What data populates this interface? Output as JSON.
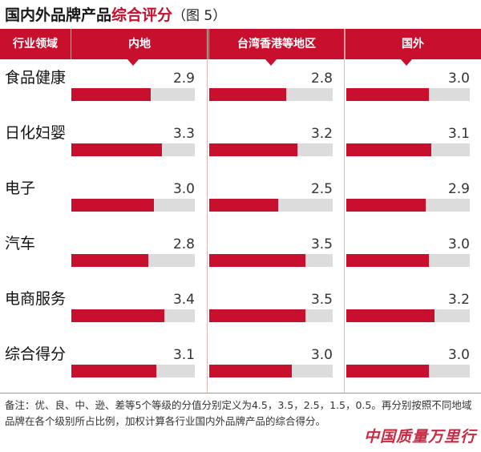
{
  "chart_data": {
    "type": "bar",
    "title_main": "国内外品牌产品",
    "title_highlight": "综合评分",
    "title_suffix": "（图 5）",
    "header_first": "行业领域",
    "categories": [
      "食品健康",
      "日化妇婴",
      "电子",
      "汽车",
      "电商服务",
      "综合得分"
    ],
    "series": [
      {
        "name": "内地",
        "values": [
          2.9,
          3.3,
          3.0,
          2.8,
          3.4,
          3.1
        ]
      },
      {
        "name": "台湾香港等地区",
        "values": [
          2.8,
          3.2,
          2.5,
          3.5,
          3.5,
          3.0
        ]
      },
      {
        "name": "国外",
        "values": [
          3.0,
          3.1,
          2.9,
          3.0,
          3.2,
          3.0
        ]
      }
    ],
    "xlim": [
      0,
      4.5
    ],
    "colors": {
      "bar": "#c8102e",
      "track": "#dcdcdc",
      "header": "#c8102e"
    }
  },
  "note": "备注：优、良、中、逊、差等5个等级的分值分别定义为4.5，3.5，2.5，1.5，0.5。再分别按照不同地域品牌在各个级别所占比例，加权计算各行业国内外品牌产品的综合得分。",
  "watermark": "中国质量万里行"
}
